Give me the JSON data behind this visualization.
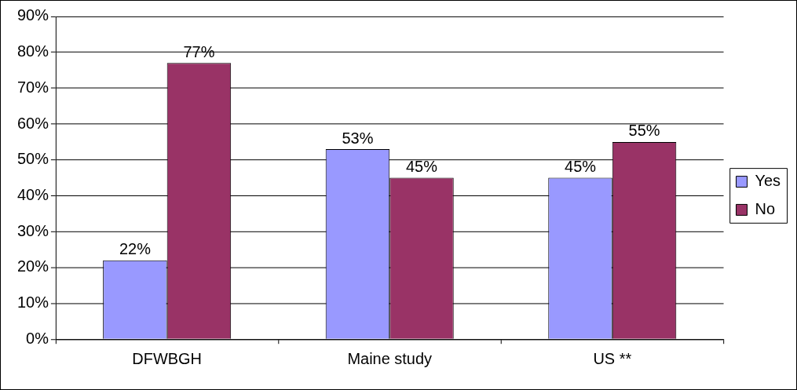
{
  "chart_data": {
    "type": "bar",
    "categories": [
      "DFWBGH",
      "Maine study",
      "US **"
    ],
    "series": [
      {
        "name": "Yes",
        "color": "#9999ff",
        "values": [
          22,
          53,
          45
        ],
        "value_labels": [
          "22%",
          "53%",
          "45%"
        ]
      },
      {
        "name": "No",
        "color": "#993366",
        "values": [
          77,
          45,
          55
        ],
        "value_labels": [
          "77%",
          "45%",
          "55%"
        ]
      }
    ],
    "ylim": [
      0,
      90
    ],
    "yticks": [
      {
        "value": 0,
        "label": "0%"
      },
      {
        "value": 10,
        "label": "10%"
      },
      {
        "value": 20,
        "label": "20%"
      },
      {
        "value": 30,
        "label": "30%"
      },
      {
        "value": 40,
        "label": "40%"
      },
      {
        "value": 50,
        "label": "50%"
      },
      {
        "value": 60,
        "label": "60%"
      },
      {
        "value": 70,
        "label": "70%"
      },
      {
        "value": 80,
        "label": "80%"
      },
      {
        "value": 90,
        "label": "90%"
      }
    ],
    "grid": "y",
    "legend": "right"
  }
}
